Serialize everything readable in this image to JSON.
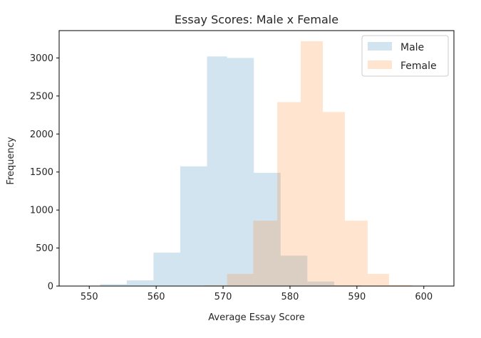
{
  "chart_data": {
    "type": "histogram",
    "title": "Essay Scores: Male x Female",
    "xlabel": "Average Essay Score",
    "ylabel": "Frequency",
    "xlim": [
      545.5,
      604.5
    ],
    "ylim": [
      0,
      3360
    ],
    "xticks": [
      550,
      560,
      570,
      580,
      590,
      600
    ],
    "yticks": [
      0,
      500,
      1000,
      1500,
      2000,
      2500,
      3000
    ],
    "grid": false,
    "legend_position": "top-right",
    "series": [
      {
        "name": "Male",
        "color": "#1f77b4",
        "opacity": 0.2,
        "bins": [
          {
            "x0": 551.6,
            "x1": 555.6,
            "count": 25
          },
          {
            "x0": 555.6,
            "x1": 559.6,
            "count": 75
          },
          {
            "x0": 559.6,
            "x1": 563.6,
            "count": 440
          },
          {
            "x0": 563.6,
            "x1": 567.6,
            "count": 1575
          },
          {
            "x0": 567.6,
            "x1": 570.6,
            "count": 3020
          },
          {
            "x0": 570.6,
            "x1": 574.6,
            "count": 3000
          },
          {
            "x0": 574.6,
            "x1": 578.6,
            "count": 1490
          },
          {
            "x0": 578.6,
            "x1": 582.6,
            "count": 400
          },
          {
            "x0": 582.6,
            "x1": 586.6,
            "count": 60
          },
          {
            "x0": 586.6,
            "x1": 590.6,
            "count": 10
          }
        ]
      },
      {
        "name": "Female",
        "color": "#ff7f0e",
        "opacity": 0.2,
        "bins": [
          {
            "x0": 567.2,
            "x1": 570.6,
            "count": 10
          },
          {
            "x0": 570.6,
            "x1": 574.5,
            "count": 160
          },
          {
            "x0": 574.5,
            "x1": 578.1,
            "count": 860
          },
          {
            "x0": 578.1,
            "x1": 581.6,
            "count": 2420
          },
          {
            "x0": 581.6,
            "x1": 584.9,
            "count": 3220
          },
          {
            "x0": 584.9,
            "x1": 588.2,
            "count": 2290
          },
          {
            "x0": 588.2,
            "x1": 591.6,
            "count": 860
          },
          {
            "x0": 591.6,
            "x1": 594.8,
            "count": 160
          },
          {
            "x0": 594.8,
            "x1": 598.3,
            "count": 15
          }
        ]
      }
    ]
  }
}
